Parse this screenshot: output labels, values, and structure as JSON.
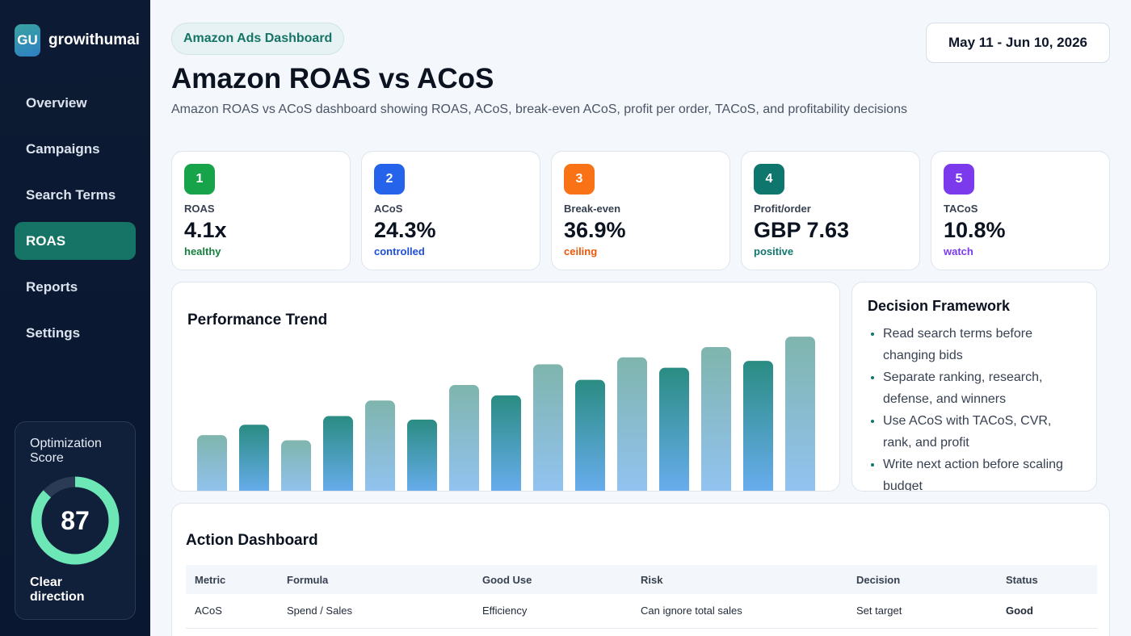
{
  "brand": {
    "logo_text": "GU",
    "name": "growithumai"
  },
  "sidebar": {
    "items": [
      {
        "label": "Overview",
        "active": false
      },
      {
        "label": "Campaigns",
        "active": false
      },
      {
        "label": "Search Terms",
        "active": false
      },
      {
        "label": "ROAS",
        "active": true
      },
      {
        "label": "Reports",
        "active": false
      },
      {
        "label": "Settings",
        "active": false
      }
    ],
    "score": {
      "title": "Optimization Score",
      "value": "87",
      "fill": 0.87,
      "footer": "Clear direction"
    }
  },
  "header": {
    "pill": "Amazon Ads Dashboard",
    "title": "Amazon ROAS vs ACoS",
    "subtitle": "Amazon ROAS vs ACoS dashboard showing ROAS, ACoS, break-even ACoS, profit per order, TACoS, and profitability decisions",
    "date_range": "May 11 - Jun 10, 2026"
  },
  "kpis": [
    {
      "num": "1",
      "label": "ROAS",
      "value": "4.1x",
      "status": "healthy",
      "color": "#16a34a",
      "status_color": "#15803d"
    },
    {
      "num": "2",
      "label": "ACoS",
      "value": "24.3%",
      "status": "controlled",
      "color": "#2563eb",
      "status_color": "#1d4ed8"
    },
    {
      "num": "3",
      "label": "Break-even",
      "value": "36.9%",
      "status": "ceiling",
      "color": "#f97316",
      "status_color": "#ea580c"
    },
    {
      "num": "4",
      "label": "Profit/order",
      "value": "GBP 7.63",
      "status": "positive",
      "color": "#0f766e",
      "status_color": "#0f766e"
    },
    {
      "num": "5",
      "label": "TACoS",
      "value": "10.8%",
      "status": "watch",
      "color": "#7c3aed",
      "status_color": "#7c3aed"
    }
  ],
  "trend": {
    "title": "Performance Trend"
  },
  "chart_data": {
    "type": "bar",
    "values": [
      35,
      41,
      32,
      46,
      55,
      44,
      64,
      58,
      76,
      67,
      80,
      74,
      86,
      78,
      92
    ],
    "ylim": [
      0,
      100
    ],
    "grid": false,
    "xlabel": "",
    "ylabel": ""
  },
  "framework": {
    "title": "Decision Framework",
    "items": [
      "Read search terms before changing bids",
      "Separate ranking, research, defense, and winners",
      "Use ACoS with TACoS, CVR, rank, and profit",
      "Write next action before scaling budget"
    ]
  },
  "action": {
    "title": "Action Dashboard",
    "columns": [
      "Metric",
      "Formula",
      "Good Use",
      "Risk",
      "Decision",
      "Status"
    ],
    "rows": [
      [
        "ACoS",
        "Spend / Sales",
        "Efficiency",
        "Can ignore total sales",
        "Set target",
        "Good"
      ]
    ]
  },
  "colors": {
    "accent": "#167466",
    "sidebar_bg": "#0c1a33",
    "gauge_fill": "#6ee7b7",
    "bar_top": "#2a8c82",
    "bar_bottom": "#6aaef2"
  },
  "icons": {}
}
